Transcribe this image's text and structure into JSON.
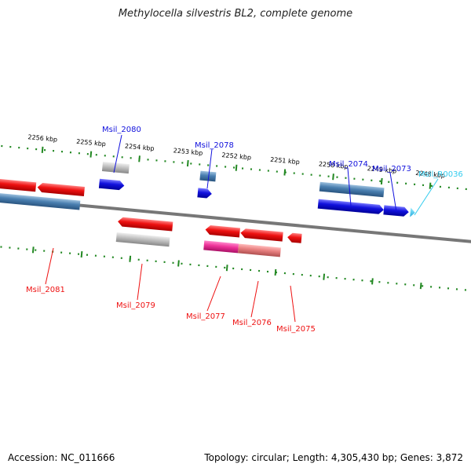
{
  "title": "Methylocella silvestris BL2, complete genome",
  "footer": {
    "accession": "Accession: NC_011666",
    "summary": "Topology: circular; Length: 4,305,430 bp; Genes: 3,872"
  },
  "colors": {
    "forward_gene": "#1111dd",
    "reverse_gene": "#ee1111",
    "rna_gene": "#33ccee",
    "blue_feature": "#4a7fb0",
    "pink_feature": "#ee3399",
    "light_red_feature": "#e88080",
    "gray_feature": "#b8b8b8",
    "backbone": "#888888",
    "ticks": "#228822"
  },
  "ruler": {
    "labels": [
      "2256 kbp",
      "2255 kbp",
      "2254 kbp",
      "2253 kbp",
      "2252 kbp",
      "2251 kbp",
      "2250 kbp",
      "2249 kbp",
      "2248 kbp"
    ]
  },
  "genes_top": [
    {
      "name": "Msil_2080",
      "color": "forward"
    },
    {
      "name": "Msil_2078",
      "color": "forward"
    },
    {
      "name": "Msil_2074",
      "color": "forward"
    },
    {
      "name": "Msil_2073",
      "color": "forward"
    },
    {
      "name": "Msil_R0036",
      "color": "rna"
    }
  ],
  "genes_bottom": [
    {
      "name": "Msil_2081",
      "color": "reverse"
    },
    {
      "name": "Msil_2079",
      "color": "reverse"
    },
    {
      "name": "Msil_2077",
      "color": "reverse"
    },
    {
      "name": "Msil_2076",
      "color": "reverse"
    },
    {
      "name": "Msil_2075",
      "color": "reverse"
    }
  ]
}
